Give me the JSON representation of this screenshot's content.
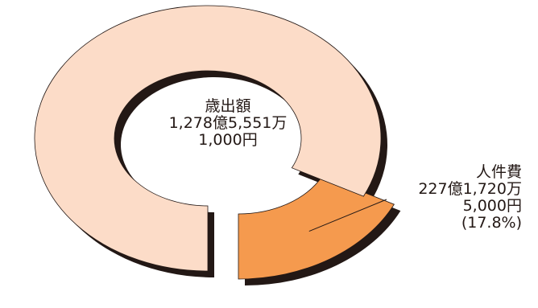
{
  "chart_data": {
    "type": "pie",
    "style": "donut, exploded slice, drop shadow",
    "total": {
      "label": "歳出額",
      "value_line1": "1,278億5,551万",
      "value_line2": "1,000円"
    },
    "slices": [
      {
        "label": "人件費",
        "value_line1": "227億1,720万",
        "value_line2": "5,000円",
        "percent_text": "(17.8%)",
        "percent": 17.8,
        "color": "#F59A4E",
        "exploded": true
      },
      {
        "label": "",
        "percent": 82.2,
        "color": "#FCDCC8",
        "exploded": false
      }
    ],
    "colors": {
      "edge": "#231815",
      "shadow": "#231815",
      "leader": "#231815"
    }
  }
}
